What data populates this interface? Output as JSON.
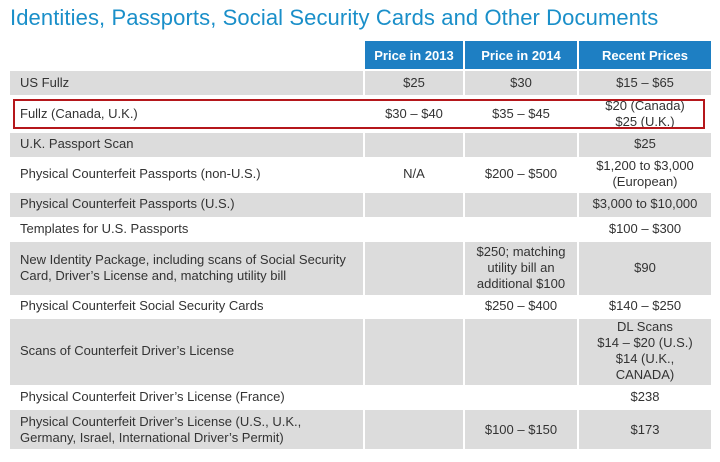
{
  "title": "Identities, Passports, Social Security Cards and Other Documents",
  "headers": [
    "",
    "Price in 2013",
    "Price in 2014",
    "Recent Prices"
  ],
  "rows": [
    {
      "item": "US Fullz",
      "p2013": "$25",
      "p2014": "$30",
      "recent": "$15 – $65"
    },
    {
      "item": "Fullz (Canada, U.K.)",
      "p2013": "$30 – $40",
      "p2014": "$35 – $45",
      "recent": "$20 (Canada)\n$25 (U.K.)"
    },
    {
      "item": "U.K. Passport Scan",
      "p2013": "",
      "p2014": "",
      "recent": "$25"
    },
    {
      "item": "Physical Counterfeit Passports (non-U.S.)",
      "p2013": "N/A",
      "p2014": "$200 – $500",
      "recent": "$1,200 to $3,000\n(European)"
    },
    {
      "item": "Physical Counterfeit Passports (U.S.)",
      "p2013": "",
      "p2014": "",
      "recent": "$3,000 to $10,000"
    },
    {
      "item": "Templates for U.S. Passports",
      "p2013": "",
      "p2014": "",
      "recent": "$100 – $300"
    },
    {
      "item": "New Identity Package, including scans of Social Security\nCard, Driver’s License and, matching utility bill",
      "p2013": "",
      "p2014": "$250; matching\nutility bill an\nadditional  $100",
      "recent": "$90"
    },
    {
      "item": "Physical Counterfeit Social Security Cards",
      "p2013": "",
      "p2014": "$250 – $400",
      "recent": "$140 – $250"
    },
    {
      "item": "Scans of Counterfeit Driver’s License",
      "p2013": "",
      "p2014": "",
      "recent": "DL Scans\n$14 – $20 (U.S.)\n$14 (U.K., CANADA)"
    },
    {
      "item": "Physical Counterfeit Driver’s License (France)",
      "p2013": "",
      "p2014": "",
      "recent": "$238"
    },
    {
      "item": "Physical Counterfeit Driver’s License (U.S., U.K.,\nGermany, Israel, International Driver’s Permit)",
      "p2013": "",
      "p2014": "$100 – $150",
      "recent": "$173"
    }
  ],
  "highlight_color": "#b5171b",
  "header_color": "#1e7fc3",
  "title_color": "#1a8fc9"
}
